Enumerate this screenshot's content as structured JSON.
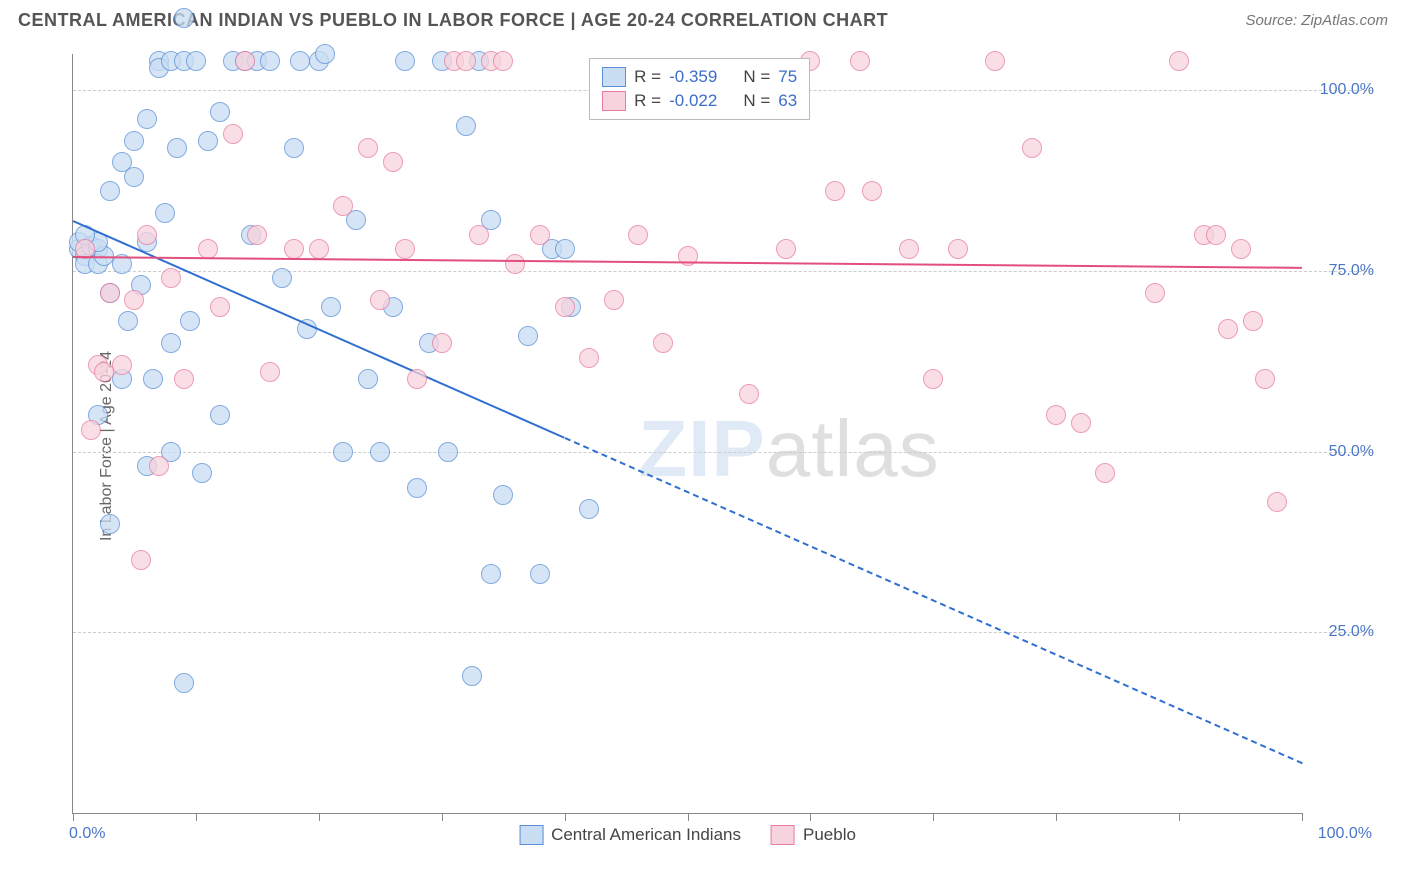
{
  "header": {
    "title": "CENTRAL AMERICAN INDIAN VS PUEBLO IN LABOR FORCE | AGE 20-24 CORRELATION CHART",
    "source": "Source: ZipAtlas.com"
  },
  "ylabel": "In Labor Force | Age 20-24",
  "watermark_bold": "ZIP",
  "watermark_rest": "atlas",
  "chart": {
    "type": "scatter",
    "xlim": [
      0,
      100
    ],
    "ylim": [
      0,
      105
    ],
    "yticks": [
      25,
      50,
      75,
      100
    ],
    "ytick_labels": [
      "25.0%",
      "50.0%",
      "75.0%",
      "100.0%"
    ],
    "xticks": [
      0,
      10,
      20,
      30,
      40,
      50,
      60,
      70,
      80,
      90,
      100
    ],
    "x_left_label": "0.0%",
    "x_right_label": "100.0%",
    "grid_color": "#cccccc",
    "axis_color": "#888888",
    "background": "#ffffff",
    "marker_radius": 9,
    "marker_border_width": 1.5,
    "series": [
      {
        "name": "Central American Indians",
        "fill": "#c9ddf3",
        "stroke": "#5a8fd6",
        "r_value": "-0.359",
        "n_value": "75",
        "trend": {
          "x1": 0,
          "y1": 82,
          "x2": 100,
          "y2": 7,
          "color": "#2f6fd0",
          "width": 2.5,
          "solid_until_x": 40
        },
        "points": [
          [
            0.5,
            78
          ],
          [
            0.5,
            79
          ],
          [
            1,
            77
          ],
          [
            1,
            76
          ],
          [
            1.5,
            78.5
          ],
          [
            2,
            78
          ],
          [
            2,
            76
          ],
          [
            2.5,
            77
          ],
          [
            2,
            79
          ],
          [
            1,
            80
          ],
          [
            3,
            72
          ],
          [
            3,
            86
          ],
          [
            4,
            90
          ],
          [
            4,
            76
          ],
          [
            4.5,
            68
          ],
          [
            5,
            93
          ],
          [
            5,
            88
          ],
          [
            5.5,
            73
          ],
          [
            6,
            96
          ],
          [
            6,
            79
          ],
          [
            6.5,
            60
          ],
          [
            7,
            104
          ],
          [
            7,
            103
          ],
          [
            7.5,
            83
          ],
          [
            8,
            104
          ],
          [
            8,
            65
          ],
          [
            8.5,
            92
          ],
          [
            9,
            110
          ],
          [
            9,
            104
          ],
          [
            9.5,
            68
          ],
          [
            10,
            104
          ],
          [
            10.5,
            47
          ],
          [
            11,
            93
          ],
          [
            12,
            97
          ],
          [
            12,
            55
          ],
          [
            13,
            104
          ],
          [
            14,
            104
          ],
          [
            14.5,
            80
          ],
          [
            15,
            104
          ],
          [
            16,
            104
          ],
          [
            17,
            74
          ],
          [
            18,
            92
          ],
          [
            18.5,
            104
          ],
          [
            19,
            67
          ],
          [
            20,
            104
          ],
          [
            20.5,
            105
          ],
          [
            21,
            70
          ],
          [
            22,
            50
          ],
          [
            23,
            82
          ],
          [
            24,
            60
          ],
          [
            25,
            50
          ],
          [
            26,
            70
          ],
          [
            9,
            18
          ],
          [
            27,
            104
          ],
          [
            28,
            45
          ],
          [
            29,
            65
          ],
          [
            30,
            104
          ],
          [
            30.5,
            50
          ],
          [
            32,
            95
          ],
          [
            32.5,
            19
          ],
          [
            33,
            104
          ],
          [
            34,
            82
          ],
          [
            34,
            33
          ],
          [
            35,
            44
          ],
          [
            37,
            66
          ],
          [
            38,
            33
          ],
          [
            39,
            78
          ],
          [
            40,
            78
          ],
          [
            40.5,
            70
          ],
          [
            42,
            42
          ],
          [
            8,
            50
          ],
          [
            6,
            48
          ],
          [
            4,
            60
          ],
          [
            3,
            40
          ],
          [
            2,
            55
          ]
        ]
      },
      {
        "name": "Pueblo",
        "fill": "#f7d3dd",
        "stroke": "#e87ba0",
        "r_value": "-0.022",
        "n_value": "63",
        "trend": {
          "x1": 0,
          "y1": 77,
          "x2": 100,
          "y2": 75.5,
          "color": "#e24f7d",
          "width": 2.5,
          "solid_until_x": 100
        },
        "points": [
          [
            1,
            78
          ],
          [
            1.5,
            53
          ],
          [
            2,
            62
          ],
          [
            2.5,
            61
          ],
          [
            3,
            72
          ],
          [
            4,
            62
          ],
          [
            5,
            71
          ],
          [
            5.5,
            35
          ],
          [
            6,
            80
          ],
          [
            7,
            48
          ],
          [
            8,
            74
          ],
          [
            9,
            60
          ],
          [
            11,
            78
          ],
          [
            12,
            70
          ],
          [
            13,
            94
          ],
          [
            14,
            104
          ],
          [
            15,
            80
          ],
          [
            16,
            61
          ],
          [
            18,
            78
          ],
          [
            20,
            78
          ],
          [
            22,
            84
          ],
          [
            24,
            92
          ],
          [
            25,
            71
          ],
          [
            26,
            90
          ],
          [
            27,
            78
          ],
          [
            28,
            60
          ],
          [
            30,
            65
          ],
          [
            31,
            104
          ],
          [
            32,
            104
          ],
          [
            33,
            80
          ],
          [
            34,
            104
          ],
          [
            35,
            104
          ],
          [
            36,
            76
          ],
          [
            38,
            80
          ],
          [
            40,
            70
          ],
          [
            42,
            63
          ],
          [
            44,
            71
          ],
          [
            46,
            80
          ],
          [
            48,
            65
          ],
          [
            50,
            77
          ],
          [
            55,
            58
          ],
          [
            58,
            78
          ],
          [
            60,
            104
          ],
          [
            62,
            86
          ],
          [
            64,
            104
          ],
          [
            65,
            86
          ],
          [
            68,
            78
          ],
          [
            70,
            60
          ],
          [
            72,
            78
          ],
          [
            75,
            104
          ],
          [
            78,
            92
          ],
          [
            80,
            55
          ],
          [
            82,
            54
          ],
          [
            84,
            47
          ],
          [
            88,
            72
          ],
          [
            90,
            104
          ],
          [
            92,
            80
          ],
          [
            93,
            80
          ],
          [
            94,
            67
          ],
          [
            95,
            78
          ],
          [
            96,
            68
          ],
          [
            97,
            60
          ],
          [
            98,
            43
          ]
        ]
      }
    ]
  },
  "legend_top": {
    "r_label": "R =",
    "n_label": "N ="
  },
  "legend_bottom": {
    "items": [
      "Central American Indians",
      "Pueblo"
    ]
  }
}
